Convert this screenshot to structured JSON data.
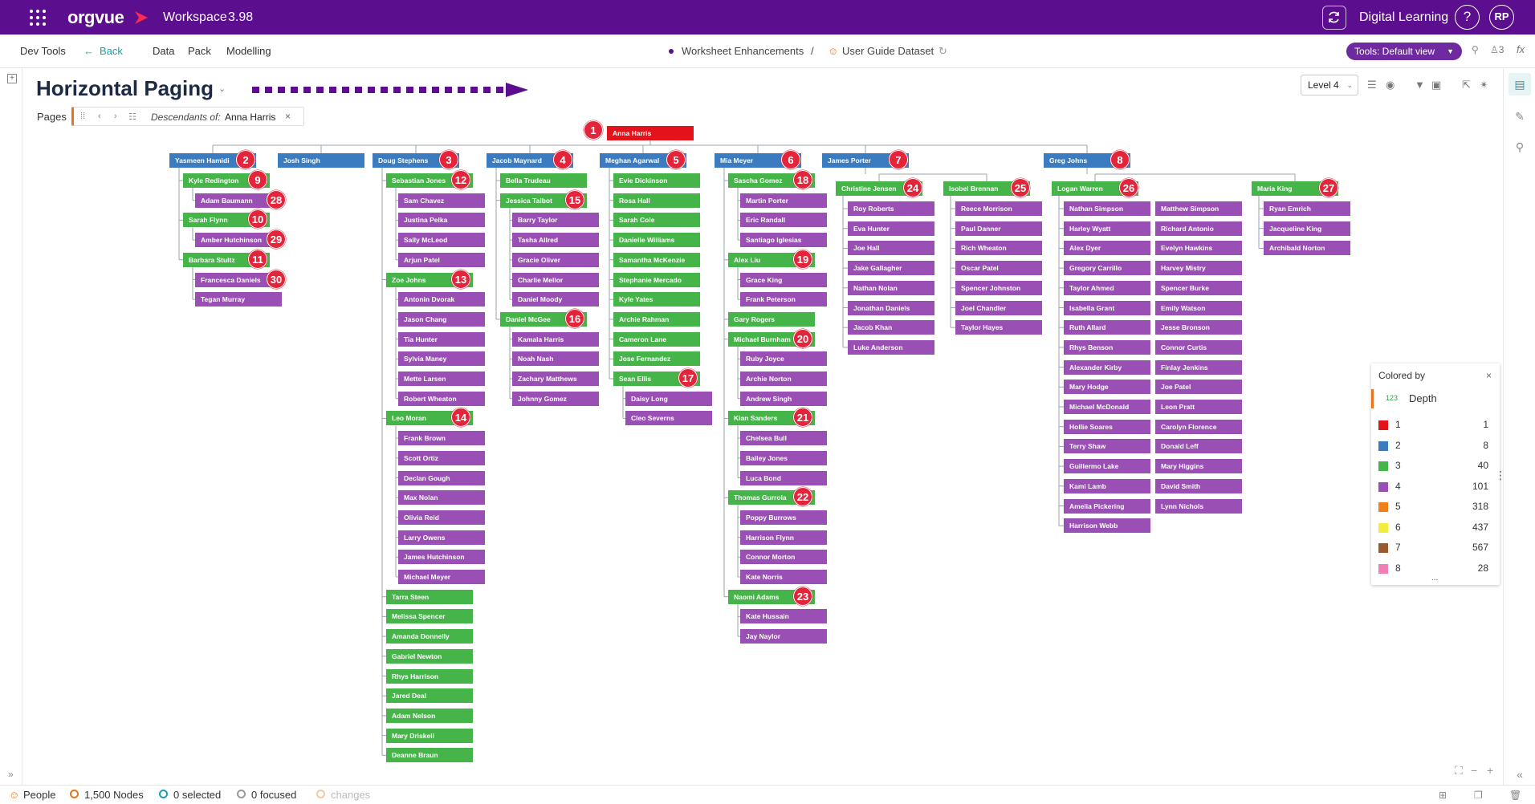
{
  "header": {
    "logo": "orgvue",
    "workspace_label": "Workspace",
    "workspace_version": "3.98",
    "account_label": "Digital Learning",
    "help_label": "?",
    "user_initials": "RP"
  },
  "toolbar": {
    "dev_tools": "Dev Tools",
    "back": "Back",
    "data": "Data",
    "pack": "Pack",
    "modelling": "Modelling",
    "crumb_worksheet": "Worksheet Enhancements",
    "crumb_sep": "/",
    "crumb_dataset": "User Guide Dataset",
    "tools_view": "Tools: Default view",
    "users_count": "3",
    "fx": "fx"
  },
  "canvas_tools": {
    "level": "Level 4"
  },
  "page": {
    "title": "Horizontal Paging",
    "pages_label": "Pages",
    "descendants_label": "Descendants of:",
    "descendants_name": "Anna Harris"
  },
  "colors": {
    "depth1": "#e3131c",
    "depth2": "#3a7cbf",
    "depth3": "#46b549",
    "depth4": "#9a4fb5",
    "depth5": "#f07f1a",
    "depth6": "#f4ec3a",
    "depth7": "#9a5a2a",
    "depth8": "#f07fb5",
    "brand": "#5b0f8f",
    "badge": "#e3243a",
    "arrow": "#5b0f8f"
  },
  "tree": {
    "root": {
      "name": "Anna Harris",
      "badge": "1"
    },
    "columns": [
      {
        "name": "Yasmeen Hamidi",
        "badge": "2",
        "groups": [
          {
            "name": "Kyle Redington",
            "badge": "9",
            "kids": [
              {
                "name": "Adam Baumann",
                "badge": "28"
              }
            ]
          },
          {
            "name": "Sarah Flynn",
            "badge": "10",
            "kids": [
              {
                "name": "Amber Hutchinson",
                "badge": "29"
              }
            ]
          },
          {
            "name": "Barbara Stultz",
            "badge": "11",
            "kids": [
              {
                "name": "Francesca Daniels",
                "badge": "30"
              },
              {
                "name": "Tegan Murray"
              }
            ]
          }
        ]
      },
      {
        "name": "Josh Singh",
        "groups": []
      },
      {
        "name": "Doug Stephens",
        "badge": "3",
        "groups": [
          {
            "name": "Sebastian Jones",
            "badge": "12",
            "kids": [
              {
                "name": "Sam Chavez"
              },
              {
                "name": "Justina Pelka"
              },
              {
                "name": "Sally McLeod"
              },
              {
                "name": "Arjun Patel"
              }
            ]
          },
          {
            "name": "Zoe Johns",
            "badge": "13",
            "kids": [
              {
                "name": "Antonin Dvorak"
              },
              {
                "name": "Jason Chang"
              },
              {
                "name": "Tia Hunter"
              },
              {
                "name": "Sylvia Maney"
              },
              {
                "name": "Mette Larsen"
              },
              {
                "name": "Robert Wheaton"
              }
            ]
          },
          {
            "name": "Leo Moran",
            "badge": "14",
            "kids": [
              {
                "name": "Frank Brown"
              },
              {
                "name": "Scott Ortiz"
              },
              {
                "name": "Declan Gough"
              },
              {
                "name": "Max Nolan"
              },
              {
                "name": "Olivia Reid"
              },
              {
                "name": "Larry Owens"
              },
              {
                "name": "James Hutchinson"
              },
              {
                "name": "Michael Meyer"
              }
            ]
          },
          {
            "name": "Tarra Steen",
            "kids": []
          },
          {
            "name": "Melissa Spencer",
            "kids": []
          },
          {
            "name": "Amanda Donnelly",
            "kids": []
          },
          {
            "name": "Gabriel Newton",
            "kids": []
          },
          {
            "name": "Rhys Harrison",
            "kids": []
          },
          {
            "name": "Jared Deal",
            "kids": []
          },
          {
            "name": "Adam Nelson",
            "kids": []
          },
          {
            "name": "Mary Driskell",
            "kids": []
          },
          {
            "name": "Deanne Braun",
            "kids": []
          }
        ]
      },
      {
        "name": "Jacob Maynard",
        "badge": "4",
        "groups": [
          {
            "name": "Bella Trudeau",
            "kids": []
          },
          {
            "name": "Jessica Talbot",
            "badge": "15",
            "kids": [
              {
                "name": "Barry Taylor"
              },
              {
                "name": "Tasha Allred"
              },
              {
                "name": "Gracie Oliver"
              },
              {
                "name": "Charlie Mellor"
              },
              {
                "name": "Daniel Moody"
              }
            ]
          },
          {
            "name": "Daniel McGee",
            "badge": "16",
            "kids": [
              {
                "name": "Kamala Harris"
              },
              {
                "name": "Noah Nash"
              },
              {
                "name": "Zachary Matthews"
              },
              {
                "name": "Johnny Gomez"
              }
            ]
          }
        ]
      },
      {
        "name": "Meghan Agarwal",
        "badge": "5",
        "groups": [
          {
            "name": "Evie Dickinson",
            "kids": []
          },
          {
            "name": "Rosa Hall",
            "kids": []
          },
          {
            "name": "Sarah Cole",
            "kids": []
          },
          {
            "name": "Danielle Williams",
            "kids": []
          },
          {
            "name": "Samantha McKenzie",
            "kids": []
          },
          {
            "name": "Stephanie Mercado",
            "kids": []
          },
          {
            "name": "Kyle Yates",
            "kids": []
          },
          {
            "name": "Archie Rahman",
            "kids": []
          },
          {
            "name": "Cameron Lane",
            "kids": []
          },
          {
            "name": "Jose Fernandez",
            "kids": []
          },
          {
            "name": "Sean Ellis",
            "badge": "17",
            "kids": [
              {
                "name": "Daisy Long"
              },
              {
                "name": "Cleo Severns"
              }
            ]
          }
        ]
      },
      {
        "name": "Mia Meyer",
        "badge": "6",
        "groups": [
          {
            "name": "Sascha Gomez",
            "badge": "18",
            "kids": [
              {
                "name": "Martin Porter"
              },
              {
                "name": "Eric Randall"
              },
              {
                "name": "Santiago Iglesias"
              }
            ]
          },
          {
            "name": "Alex Liu",
            "badge": "19",
            "kids": [
              {
                "name": "Grace King"
              },
              {
                "name": "Frank Peterson"
              }
            ]
          },
          {
            "name": "Gary Rogers",
            "kids": []
          },
          {
            "name": "Michael Burnham",
            "badge": "20",
            "kids": [
              {
                "name": "Ruby Joyce"
              },
              {
                "name": "Archie Norton"
              },
              {
                "name": "Andrew Singh"
              }
            ]
          },
          {
            "name": "Kian Sanders",
            "badge": "21",
            "kids": [
              {
                "name": "Chelsea Bull"
              },
              {
                "name": "Bailey Jones"
              },
              {
                "name": "Luca Bond"
              }
            ]
          },
          {
            "name": "Thomas Gurrola",
            "badge": "22",
            "kids": [
              {
                "name": "Poppy Burrows"
              },
              {
                "name": "Harrison Flynn"
              },
              {
                "name": "Connor Morton"
              },
              {
                "name": "Kate Norris"
              }
            ]
          },
          {
            "name": "Naomi Adams",
            "badge": "23",
            "kids": [
              {
                "name": "Kate Hussain"
              },
              {
                "name": "Jay Naylor"
              }
            ]
          }
        ]
      }
    ],
    "james_porter": {
      "name": "James Porter",
      "badge": "7",
      "groups": [
        {
          "name": "Christine Jensen",
          "badge": "24",
          "kids": [
            {
              "name": "Roy Roberts"
            },
            {
              "name": "Eva Hunter"
            },
            {
              "name": "Joe Hall"
            },
            {
              "name": "Jake Gallagher"
            },
            {
              "name": "Nathan Nolan"
            },
            {
              "name": "Jonathan Daniels"
            },
            {
              "name": "Jacob Khan"
            },
            {
              "name": "Luke Anderson"
            }
          ]
        },
        {
          "name": "Isobel Brennan",
          "badge": "25",
          "kids": [
            {
              "name": "Reece Morrison"
            },
            {
              "name": "Paul Danner"
            },
            {
              "name": "Rich Wheaton"
            },
            {
              "name": "Oscar Patel"
            },
            {
              "name": "Spencer Johnston"
            },
            {
              "name": "Joel Chandler"
            },
            {
              "name": "Taylor Hayes"
            }
          ]
        }
      ]
    },
    "greg_johns": {
      "name": "Greg Johns",
      "badge": "8",
      "groups": [
        {
          "name": "Logan Warren",
          "badge": "26",
          "kids_a": [
            {
              "name": "Nathan Simpson"
            },
            {
              "name": "Harley Wyatt"
            },
            {
              "name": "Alex Dyer"
            },
            {
              "name": "Gregory Carrillo"
            },
            {
              "name": "Taylor Ahmed"
            },
            {
              "name": "Isabella Grant"
            },
            {
              "name": "Ruth Allard"
            },
            {
              "name": "Rhys Benson"
            },
            {
              "name": "Alexander Kirby"
            },
            {
              "name": "Mary Hodge"
            },
            {
              "name": "Michael McDonald"
            },
            {
              "name": "Hollie Soares"
            },
            {
              "name": "Terry Shaw"
            },
            {
              "name": "Guillermo Lake"
            },
            {
              "name": "Kami Lamb"
            },
            {
              "name": "Amelia Pickering"
            },
            {
              "name": "Harrison Webb"
            }
          ],
          "kids_b": [
            {
              "name": "Matthew Simpson"
            },
            {
              "name": "Richard Antonio"
            },
            {
              "name": "Evelyn Hawkins"
            },
            {
              "name": "Harvey Mistry"
            },
            {
              "name": "Spencer Burke"
            },
            {
              "name": "Emily Watson"
            },
            {
              "name": "Jesse Bronson"
            },
            {
              "name": "Connor Curtis"
            },
            {
              "name": "Finlay Jenkins"
            },
            {
              "name": "Joe Patel"
            },
            {
              "name": "Leon Pratt"
            },
            {
              "name": "Carolyn Florence"
            },
            {
              "name": "Donald Leff"
            },
            {
              "name": "Mary Higgins"
            },
            {
              "name": "David Smith"
            },
            {
              "name": "Lynn Nichols"
            }
          ]
        },
        {
          "name": "Maria King",
          "badge": "27",
          "kids": [
            {
              "name": "Ryan Emrich"
            },
            {
              "name": "Jacqueline King"
            },
            {
              "name": "Archibald Norton"
            }
          ]
        }
      ]
    }
  },
  "legend": {
    "title": "Colored by",
    "field_type": "123",
    "field": "Depth",
    "rows": [
      {
        "level": "1",
        "count": "1"
      },
      {
        "level": "2",
        "count": "8"
      },
      {
        "level": "3",
        "count": "40"
      },
      {
        "level": "4",
        "count": "101"
      },
      {
        "level": "5",
        "count": "318"
      },
      {
        "level": "6",
        "count": "437"
      },
      {
        "level": "7",
        "count": "567"
      },
      {
        "level": "8",
        "count": "28"
      }
    ],
    "more": "..."
  },
  "status": {
    "people": "People",
    "nodes": "1,500 Nodes",
    "selected": "0 selected",
    "focused": "0 focused",
    "changes": "changes"
  }
}
